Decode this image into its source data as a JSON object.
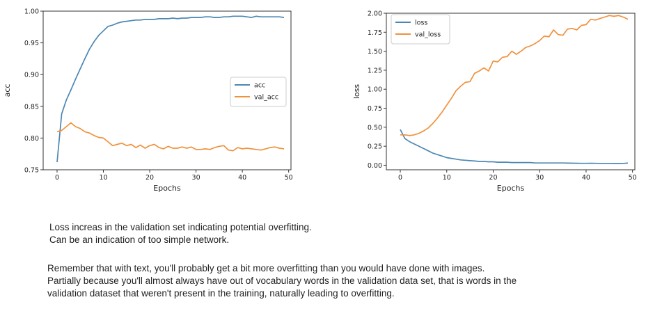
{
  "chart_data": [
    {
      "type": "line",
      "xlabel": "Epochs",
      "ylabel": "acc",
      "xlim": [
        -3,
        50.5
      ],
      "ylim": [
        0.75,
        1.0
      ],
      "xticks": [
        0,
        10,
        20,
        30,
        40,
        50
      ],
      "yticks": [
        0.75,
        0.8,
        0.85,
        0.9,
        0.95,
        1.0
      ],
      "ytick_labels": [
        "0.75",
        "0.80",
        "0.85",
        "0.90",
        "0.95",
        "1.00"
      ],
      "legend_position": "center-right",
      "grid": false,
      "series": [
        {
          "name": "acc",
          "color": "#4c87b2",
          "values": [
            0.762,
            0.838,
            0.86,
            0.876,
            0.893,
            0.909,
            0.925,
            0.94,
            0.952,
            0.962,
            0.969,
            0.976,
            0.978,
            0.981,
            0.983,
            0.984,
            0.985,
            0.986,
            0.986,
            0.987,
            0.987,
            0.987,
            0.988,
            0.988,
            0.988,
            0.989,
            0.988,
            0.989,
            0.989,
            0.99,
            0.99,
            0.99,
            0.991,
            0.991,
            0.99,
            0.99,
            0.991,
            0.991,
            0.992,
            0.992,
            0.992,
            0.991,
            0.99,
            0.992,
            0.991,
            0.991,
            0.991,
            0.991,
            0.991,
            0.99
          ]
        },
        {
          "name": "val_acc",
          "color": "#f0913c",
          "values": [
            0.81,
            0.812,
            0.818,
            0.824,
            0.818,
            0.815,
            0.81,
            0.808,
            0.804,
            0.801,
            0.8,
            0.794,
            0.788,
            0.79,
            0.792,
            0.788,
            0.79,
            0.785,
            0.789,
            0.784,
            0.788,
            0.79,
            0.785,
            0.783,
            0.787,
            0.784,
            0.784,
            0.786,
            0.784,
            0.786,
            0.782,
            0.782,
            0.783,
            0.782,
            0.785,
            0.787,
            0.788,
            0.781,
            0.78,
            0.785,
            0.783,
            0.784,
            0.783,
            0.782,
            0.781,
            0.783,
            0.785,
            0.786,
            0.784,
            0.783
          ]
        }
      ]
    },
    {
      "type": "line",
      "xlabel": "Epochs",
      "ylabel": "loss",
      "xlim": [
        -3,
        50.5
      ],
      "ylim": [
        -0.06,
        2.0
      ],
      "xticks": [
        0,
        10,
        20,
        30,
        40,
        50
      ],
      "yticks": [
        0.0,
        0.25,
        0.5,
        0.75,
        1.0,
        1.25,
        1.5,
        1.75,
        2.0
      ],
      "ytick_labels": [
        "0.00",
        "0.25",
        "0.50",
        "0.75",
        "1.00",
        "1.25",
        "1.50",
        "1.75",
        "2.00"
      ],
      "legend_position": "upper-left",
      "grid": false,
      "series": [
        {
          "name": "loss",
          "color": "#4c87b2",
          "values": [
            0.47,
            0.35,
            0.31,
            0.28,
            0.25,
            0.22,
            0.19,
            0.16,
            0.14,
            0.12,
            0.1,
            0.09,
            0.08,
            0.07,
            0.065,
            0.06,
            0.055,
            0.05,
            0.05,
            0.045,
            0.045,
            0.04,
            0.04,
            0.04,
            0.035,
            0.035,
            0.035,
            0.035,
            0.035,
            0.03,
            0.03,
            0.03,
            0.03,
            0.03,
            0.03,
            0.03,
            0.028,
            0.027,
            0.026,
            0.025,
            0.025,
            0.026,
            0.025,
            0.024,
            0.024,
            0.024,
            0.023,
            0.023,
            0.024,
            0.028
          ]
        },
        {
          "name": "val_loss",
          "color": "#f0913c",
          "values": [
            0.4,
            0.4,
            0.39,
            0.4,
            0.42,
            0.45,
            0.49,
            0.55,
            0.62,
            0.7,
            0.79,
            0.88,
            0.98,
            1.04,
            1.09,
            1.1,
            1.21,
            1.24,
            1.28,
            1.24,
            1.37,
            1.36,
            1.42,
            1.43,
            1.5,
            1.46,
            1.5,
            1.55,
            1.57,
            1.6,
            1.64,
            1.7,
            1.69,
            1.78,
            1.72,
            1.71,
            1.79,
            1.8,
            1.78,
            1.84,
            1.85,
            1.92,
            1.91,
            1.93,
            1.95,
            1.97,
            1.96,
            1.97,
            1.95,
            1.92
          ]
        }
      ]
    }
  ],
  "notes": {
    "para1": [
      "Loss increas in the validation set indicating potential overfitting.",
      "Can be an indication of too simple network."
    ],
    "para2": [
      "Remember that with text, you'll probably get a bit more overfitting than you would have done with images.",
      "Partially because you'll almost always have out of vocabulary words in the validation data set, that is words in the",
      "validation dataset that weren't present in the training, naturally leading to overfitting."
    ]
  }
}
